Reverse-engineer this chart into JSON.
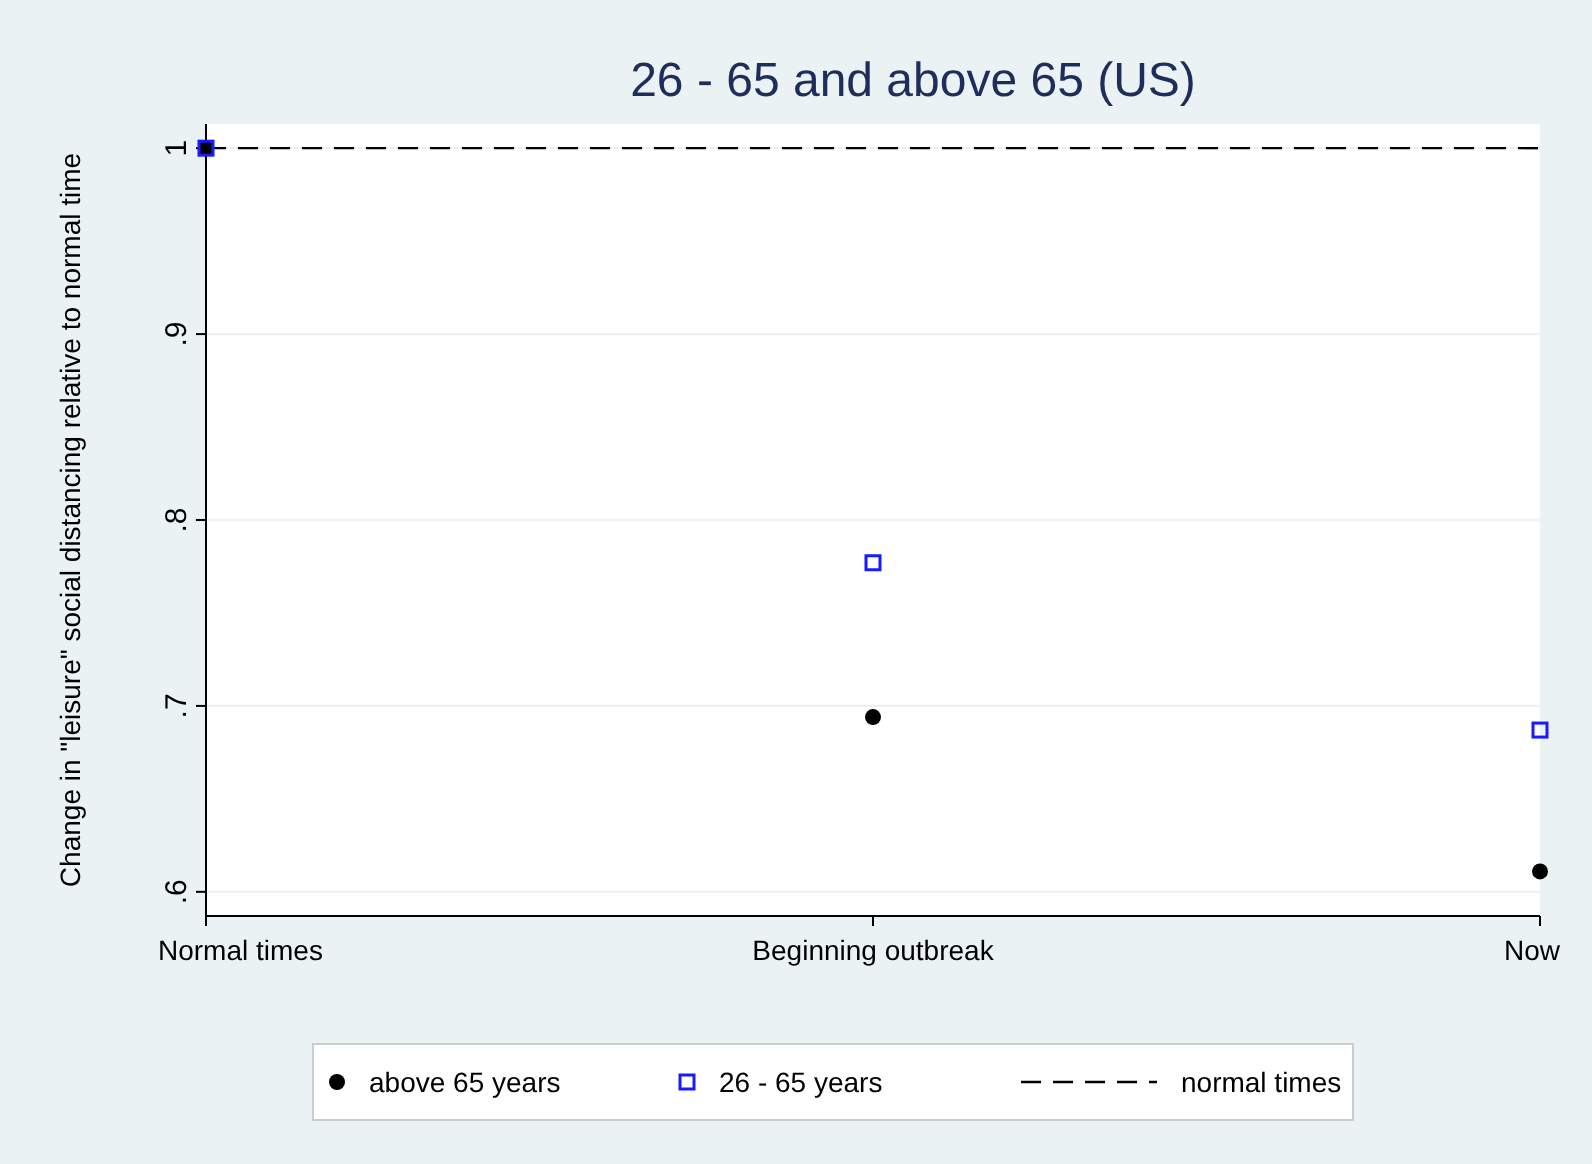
{
  "chart_data": {
    "type": "scatter",
    "title": "26 - 65 and above 65 (US)",
    "ylabel": "Change in \"leisure\" social distancing relative to normal time",
    "categories": [
      "Normal times",
      "Beginning outbreak",
      "Now"
    ],
    "series": [
      {
        "name": "above 65 years",
        "color": "#000000",
        "marker": "circle",
        "values": [
          1,
          0.694,
          0.611
        ]
      },
      {
        "name": "26 - 65 years",
        "color": "#1a1aff",
        "marker": "square",
        "values": [
          1,
          0.777,
          0.687
        ]
      }
    ],
    "ylim": [
      0.587,
      1.013
    ],
    "yticks": [
      {
        "value": 0.6,
        "label": ".6"
      },
      {
        "value": 0.7,
        "label": ".7"
      },
      {
        "value": 0.8,
        "label": ".8"
      },
      {
        "value": 0.9,
        "label": ".9"
      },
      {
        "value": 1,
        "label": "1"
      }
    ],
    "ref_lines": [
      {
        "axis": "y",
        "value": 1,
        "label": "normal times",
        "color": "#000000",
        "line_style": "dashed"
      }
    ],
    "grid": "y",
    "legend": "bottom"
  }
}
